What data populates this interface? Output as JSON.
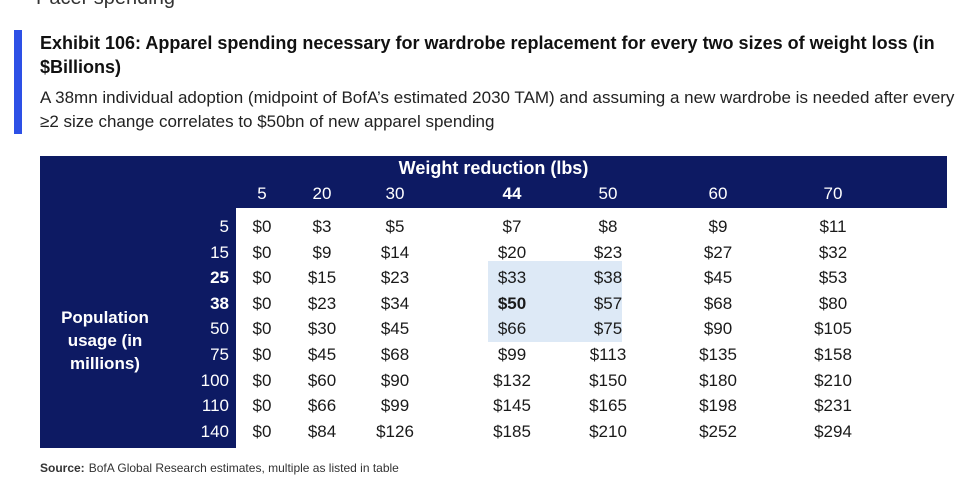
{
  "page_fragment": "Pacer spending",
  "exhibit": {
    "title": "Exhibit 106: Apparel spending necessary for wardrobe replacement for every two sizes of weight loss (in $Billions)",
    "subtitle": "A 38mn individual adoption (midpoint of BofA’s estimated 2030 TAM) and assuming a new wardrobe is needed after every ≥2 size change correlates to $50bn of new apparel spending"
  },
  "table": {
    "header_title": "Weight reduction (lbs)",
    "row_group_label": "Population usage (in millions)",
    "columns": [
      "5",
      "20",
      "30",
      "44",
      "50",
      "60",
      "70"
    ],
    "bold_columns": [
      3
    ],
    "rows": [
      {
        "label": "5",
        "bold": false,
        "cells": [
          "$0",
          "$3",
          "$5",
          "$7",
          "$8",
          "$9",
          "$11"
        ]
      },
      {
        "label": "15",
        "bold": false,
        "cells": [
          "$0",
          "$9",
          "$14",
          "$20",
          "$23",
          "$27",
          "$32"
        ]
      },
      {
        "label": "25",
        "bold": true,
        "cells": [
          "$0",
          "$15",
          "$23",
          "$33",
          "$38",
          "$45",
          "$53"
        ]
      },
      {
        "label": "38",
        "bold": true,
        "cells": [
          "$0",
          "$23",
          "$34",
          "$50",
          "$57",
          "$68",
          "$80"
        ]
      },
      {
        "label": "50",
        "bold": false,
        "cells": [
          "$0",
          "$30",
          "$45",
          "$66",
          "$75",
          "$90",
          "$105"
        ]
      },
      {
        "label": "75",
        "bold": false,
        "cells": [
          "$0",
          "$45",
          "$68",
          "$99",
          "$113",
          "$135",
          "$158"
        ]
      },
      {
        "label": "100",
        "bold": false,
        "cells": [
          "$0",
          "$60",
          "$90",
          "$132",
          "$150",
          "$180",
          "$210"
        ]
      },
      {
        "label": "110",
        "bold": false,
        "cells": [
          "$0",
          "$66",
          "$99",
          "$145",
          "$165",
          "$198",
          "$231"
        ]
      },
      {
        "label": "140",
        "bold": false,
        "cells": [
          "$0",
          "$84",
          "$126",
          "$185",
          "$210",
          "$252",
          "$294"
        ]
      }
    ],
    "bold_cell": {
      "row": 3,
      "col": 3
    }
  },
  "source": {
    "label": "Source:",
    "text": "BofA Global Research estimates, multiple as listed in table"
  },
  "colors": {
    "accent": "#2d50e6",
    "navy": "#0d1a63",
    "highlight": "#dde9f6"
  }
}
